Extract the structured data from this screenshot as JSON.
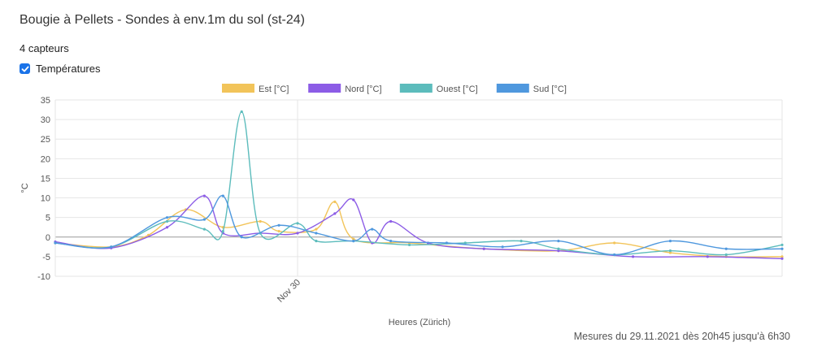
{
  "page": {
    "title": "Bougie à Pellets - Sondes à env.1m du sol (st-24)",
    "sensor_count": "4 capteurs",
    "checkbox_label": "Températures",
    "footer": "Mesures du 29.11.2021 dès 20h45 jusqu'à 6h30"
  },
  "chart_data": {
    "type": "line",
    "xlabel": "Heures (Zürich)",
    "ylabel": "°C",
    "ylim": [
      -10,
      35
    ],
    "yticks": [
      35,
      30,
      25,
      20,
      15,
      10,
      5,
      0,
      -5,
      -10
    ],
    "x_tick_labels": [
      "Nov 30"
    ],
    "xlim": [
      "2021-11-29 20:45",
      "2021-11-30 06:30"
    ],
    "grid": true,
    "legend_position": "top-center",
    "series": [
      {
        "name": "Est [°C]",
        "color": "#f2c45a",
        "values": [
          [
            "2021-11-29 20:45",
            -1.5
          ],
          [
            "2021-11-29 21:30",
            -2.5
          ],
          [
            "2021-11-29 22:00",
            0.5
          ],
          [
            "2021-11-29 22:30",
            7.0
          ],
          [
            "2021-11-29 23:00",
            2.5
          ],
          [
            "2021-11-29 23:30",
            4.0
          ],
          [
            "2021-11-29 23:45",
            1.5
          ],
          [
            "2021-11-30 00:15",
            2.0
          ],
          [
            "2021-11-30 00:30",
            9.0
          ],
          [
            "2021-11-30 00:45",
            -0.5
          ],
          [
            "2021-11-30 01:30",
            -1.5
          ],
          [
            "2021-11-30 02:30",
            -3.0
          ],
          [
            "2021-11-30 03:30",
            -3.5
          ],
          [
            "2021-11-30 04:15",
            -1.5
          ],
          [
            "2021-11-30 05:00",
            -4.0
          ],
          [
            "2021-11-30 05:45",
            -5.0
          ],
          [
            "2021-11-30 06:30",
            -5.0
          ]
        ]
      },
      {
        "name": "Nord [°C]",
        "color": "#8c5ce6",
        "values": [
          [
            "2021-11-29 20:45",
            -1.2
          ],
          [
            "2021-11-29 21:30",
            -2.8
          ],
          [
            "2021-11-29 22:15",
            2.5
          ],
          [
            "2021-11-29 22:45",
            10.5
          ],
          [
            "2021-11-29 23:00",
            1.0
          ],
          [
            "2021-11-29 23:30",
            1.0
          ],
          [
            "2021-11-30 00:00",
            1.0
          ],
          [
            "2021-11-30 00:30",
            6.0
          ],
          [
            "2021-11-30 00:45",
            9.5
          ],
          [
            "2021-11-30 01:00",
            -1.5
          ],
          [
            "2021-11-30 01:15",
            4.0
          ],
          [
            "2021-11-30 01:45",
            -1.5
          ],
          [
            "2021-11-30 02:30",
            -3.0
          ],
          [
            "2021-11-30 03:30",
            -3.5
          ],
          [
            "2021-11-30 04:30",
            -5.0
          ],
          [
            "2021-11-30 05:30",
            -5.0
          ],
          [
            "2021-11-30 06:30",
            -5.5
          ]
        ]
      },
      {
        "name": "Ouest [°C]",
        "color": "#5cbcbc",
        "values": [
          [
            "2021-11-29 20:45",
            -1.5
          ],
          [
            "2021-11-29 21:30",
            -2.5
          ],
          [
            "2021-11-29 22:15",
            4.0
          ],
          [
            "2021-11-29 22:45",
            2.0
          ],
          [
            "2021-11-29 23:00",
            1.5
          ],
          [
            "2021-11-29 23:15",
            32.0
          ],
          [
            "2021-11-29 23:30",
            1.0
          ],
          [
            "2021-11-30 00:00",
            3.5
          ],
          [
            "2021-11-30 00:15",
            -1.0
          ],
          [
            "2021-11-30 00:45",
            -1.0
          ],
          [
            "2021-11-30 01:30",
            -2.0
          ],
          [
            "2021-11-30 02:15",
            -1.5
          ],
          [
            "2021-11-30 03:00",
            -1.0
          ],
          [
            "2021-11-30 03:30",
            -3.0
          ],
          [
            "2021-11-30 04:15",
            -4.5
          ],
          [
            "2021-11-30 05:00",
            -3.5
          ],
          [
            "2021-11-30 05:45",
            -4.5
          ],
          [
            "2021-11-30 06:30",
            -2.0
          ]
        ]
      },
      {
        "name": "Sud [°C]",
        "color": "#4f98de",
        "values": [
          [
            "2021-11-29 20:45",
            -1.5
          ],
          [
            "2021-11-29 21:30",
            -2.5
          ],
          [
            "2021-11-29 22:15",
            5.0
          ],
          [
            "2021-11-29 22:45",
            4.5
          ],
          [
            "2021-11-29 23:00",
            10.5
          ],
          [
            "2021-11-29 23:15",
            0.0
          ],
          [
            "2021-11-29 23:45",
            3.0
          ],
          [
            "2021-11-30 00:15",
            1.0
          ],
          [
            "2021-11-30 00:45",
            -1.0
          ],
          [
            "2021-11-30 01:00",
            2.0
          ],
          [
            "2021-11-30 01:15",
            -1.0
          ],
          [
            "2021-11-30 02:00",
            -1.5
          ],
          [
            "2021-11-30 02:45",
            -2.5
          ],
          [
            "2021-11-30 03:30",
            -1.0
          ],
          [
            "2021-11-30 04:15",
            -4.5
          ],
          [
            "2021-11-30 05:00",
            -1.0
          ],
          [
            "2021-11-30 05:45",
            -3.0
          ],
          [
            "2021-11-30 06:30",
            -3.0
          ]
        ]
      }
    ]
  }
}
